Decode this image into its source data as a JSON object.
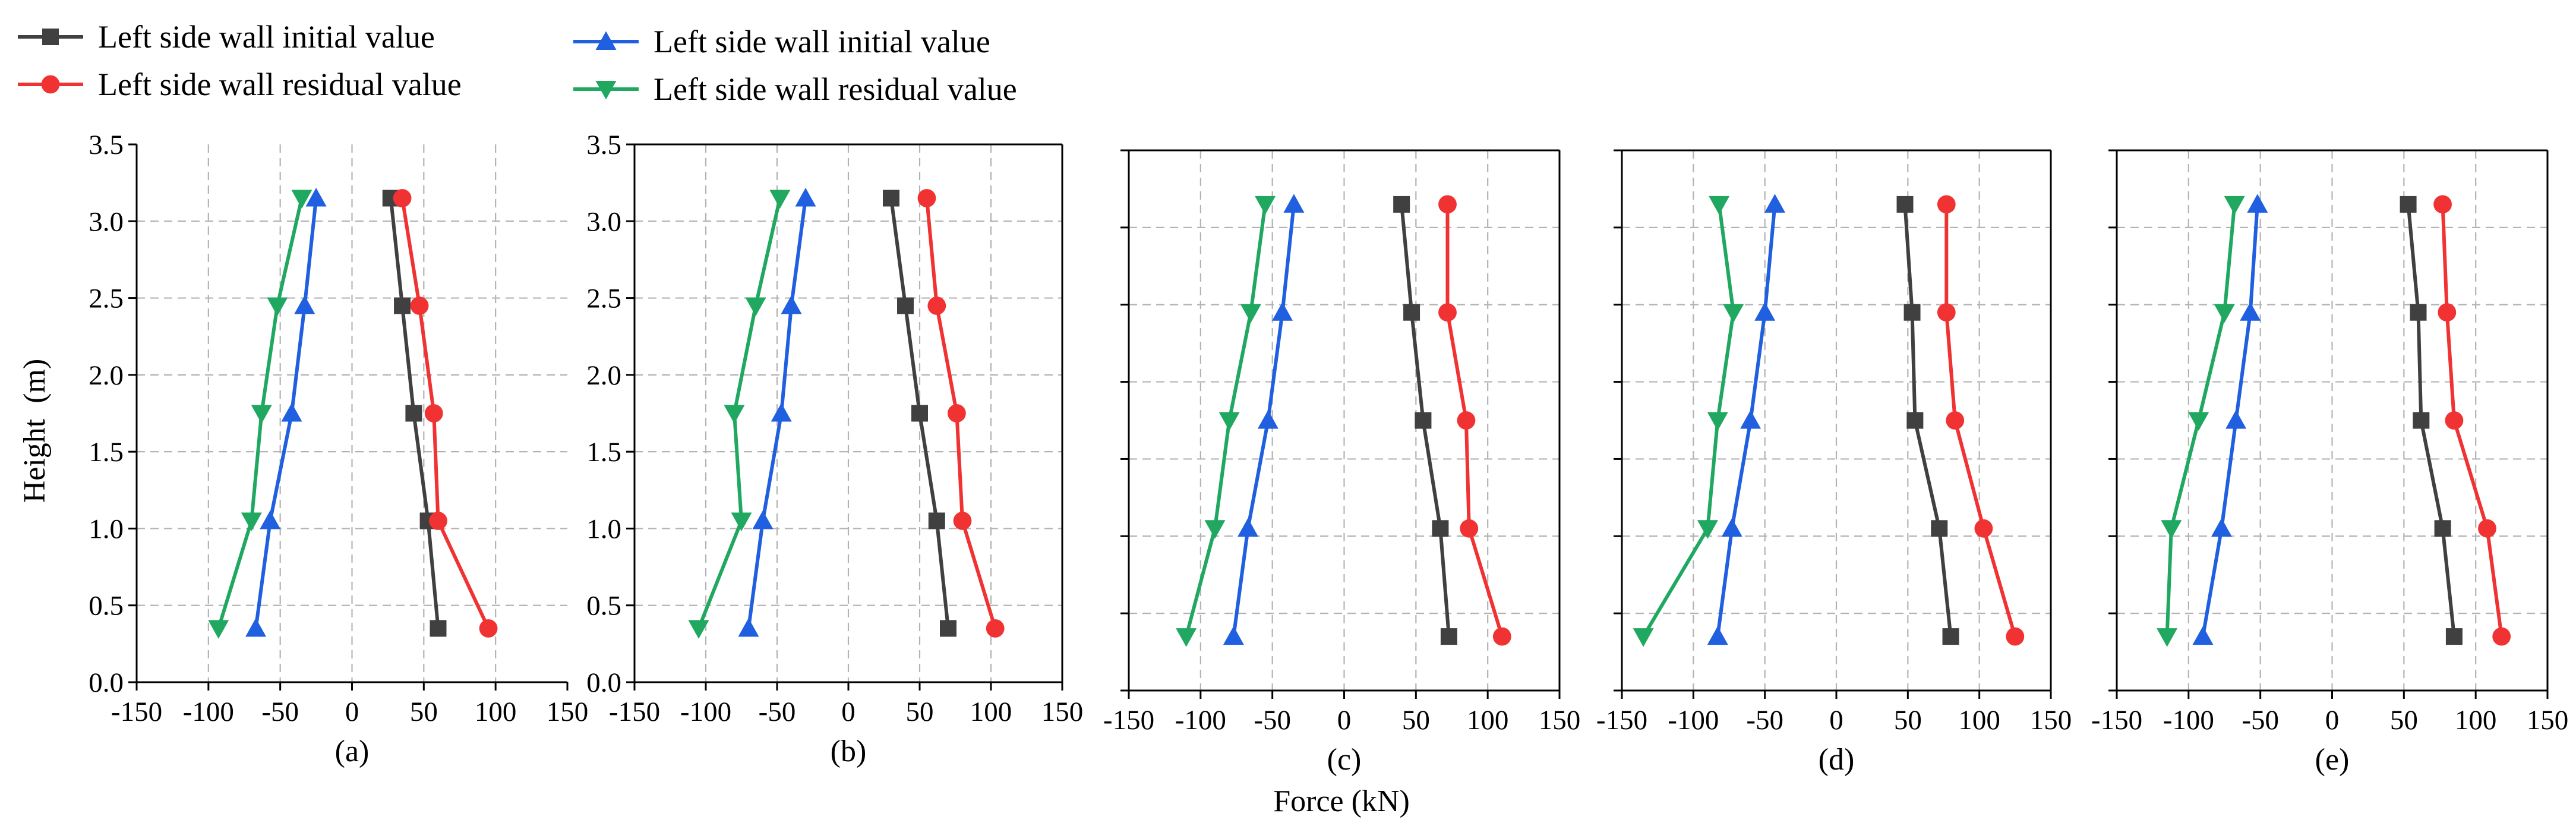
{
  "legend": [
    {
      "label": "Left side wall initial value",
      "color": "#404040",
      "marker": "square"
    },
    {
      "label": "Left side wall residual value",
      "color": "#f03232",
      "marker": "circle"
    },
    {
      "label": "Left side wall initial value",
      "color": "#1f5fe0",
      "marker": "triangle-up"
    },
    {
      "label": "Left side wall residual value",
      "color": "#20a860",
      "marker": "triangle-down"
    }
  ],
  "ylabel": "Height  (m)",
  "xlabel": "Force (kN)",
  "chart_data": [
    {
      "type": "line",
      "label": "(a)",
      "xlim": [
        -150,
        150
      ],
      "ylim": [
        0,
        3.5
      ],
      "xticks": [
        "-150",
        "-100",
        "-50",
        "0",
        "50",
        "100",
        "150"
      ],
      "yticks": [
        "0.0",
        "0.5",
        "1.0",
        "1.5",
        "2.0",
        "2.5",
        "3.0",
        "3.5"
      ],
      "y": [
        0.35,
        1.05,
        1.75,
        2.45,
        3.15
      ],
      "series": [
        {
          "name": "Left side wall initial value",
          "values": [
            60,
            53,
            43,
            35,
            27
          ]
        },
        {
          "name": "Left side wall residual value",
          "values": [
            95,
            60,
            57,
            47,
            35
          ]
        },
        {
          "name": "Left side wall initial value",
          "values": [
            -67,
            -57,
            -42,
            -33,
            -25
          ]
        },
        {
          "name": "Left side wall residual value",
          "values": [
            -93,
            -70,
            -63,
            -52,
            -35
          ]
        }
      ]
    },
    {
      "type": "line",
      "label": "(b)",
      "xlim": [
        -150,
        150
      ],
      "ylim": [
        0,
        3.5
      ],
      "xticks": [
        "-150",
        "-100",
        "-50",
        "0",
        "50",
        "100",
        "150"
      ],
      "yticks": [
        "0.0",
        "0.5",
        "1.0",
        "1.5",
        "2.0",
        "2.5",
        "3.0",
        "3.5"
      ],
      "y": [
        0.35,
        1.05,
        1.75,
        2.45,
        3.15
      ],
      "series": [
        {
          "name": "Left side wall initial value",
          "values": [
            70,
            62,
            50,
            40,
            30
          ]
        },
        {
          "name": "Left side wall residual value",
          "values": [
            103,
            80,
            76,
            62,
            55
          ]
        },
        {
          "name": "Left side wall initial value",
          "values": [
            -70,
            -60,
            -47,
            -40,
            -30
          ]
        },
        {
          "name": "Left side wall residual value",
          "values": [
            -105,
            -75,
            -80,
            -65,
            -48
          ]
        }
      ]
    },
    {
      "type": "line",
      "label": "(c)",
      "xlim": [
        -150,
        150
      ],
      "ylim": [
        0,
        3.5
      ],
      "xticks": [
        "-150",
        "-100",
        "-50",
        "0",
        "50",
        "100",
        "150"
      ],
      "y": [
        0.35,
        1.05,
        1.75,
        2.45,
        3.15
      ],
      "series": [
        {
          "name": "Left side wall initial value",
          "values": [
            73,
            67,
            55,
            47,
            40
          ]
        },
        {
          "name": "Left side wall residual value",
          "values": [
            110,
            87,
            85,
            72,
            72
          ]
        },
        {
          "name": "Left side wall initial value",
          "values": [
            -77,
            -67,
            -53,
            -43,
            -35
          ]
        },
        {
          "name": "Left side wall residual value",
          "values": [
            -110,
            -90,
            -80,
            -65,
            -55
          ]
        }
      ]
    },
    {
      "type": "line",
      "label": "(d)",
      "xlim": [
        -150,
        150
      ],
      "ylim": [
        0,
        3.5
      ],
      "xticks": [
        "-150",
        "-100",
        "-50",
        "0",
        "50",
        "100",
        "150"
      ],
      "y": [
        0.35,
        1.05,
        1.75,
        2.45,
        3.15
      ],
      "series": [
        {
          "name": "Left side wall initial value",
          "values": [
            80,
            72,
            55,
            53,
            48
          ]
        },
        {
          "name": "Left side wall residual value",
          "values": [
            125,
            103,
            83,
            77,
            77
          ]
        },
        {
          "name": "Left side wall initial value",
          "values": [
            -83,
            -73,
            -60,
            -50,
            -43
          ]
        },
        {
          "name": "Left side wall residual value",
          "values": [
            -135,
            -90,
            -83,
            -72,
            -82
          ]
        }
      ]
    },
    {
      "type": "line",
      "label": "(e)",
      "xlim": [
        -150,
        150
      ],
      "ylim": [
        0,
        3.5
      ],
      "xticks": [
        "-150",
        "-100",
        "-50",
        "0",
        "50",
        "100",
        "150"
      ],
      "y": [
        0.35,
        1.05,
        1.75,
        2.45,
        3.15
      ],
      "series": [
        {
          "name": "Left side wall initial value",
          "values": [
            85,
            77,
            62,
            60,
            53
          ]
        },
        {
          "name": "Left side wall residual value",
          "values": [
            118,
            108,
            85,
            80,
            77
          ]
        },
        {
          "name": "Left side wall initial value",
          "values": [
            -90,
            -77,
            -67,
            -57,
            -52
          ]
        },
        {
          "name": "Left side wall residual value",
          "values": [
            -115,
            -112,
            -93,
            -75,
            -68
          ]
        }
      ]
    }
  ]
}
